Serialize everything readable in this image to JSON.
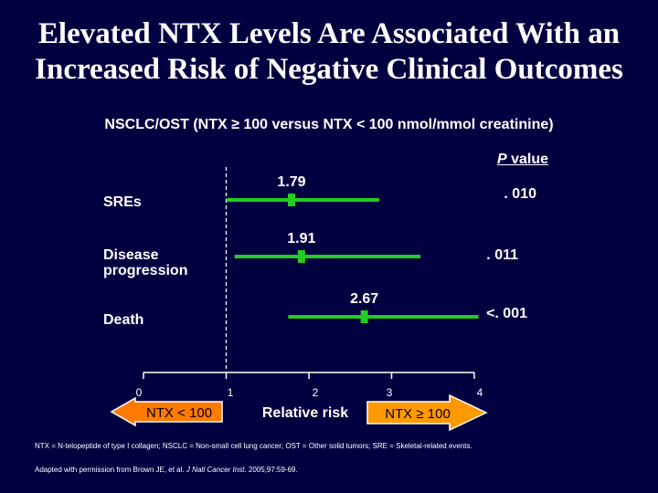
{
  "title_line1": "Elevated NTX Levels Are Associated With an",
  "title_line2": "Increased Risk of Negative Clinical Outcomes",
  "subtitle": "NSCLC/OST (NTX ≥ 100 versus NTX < 100 nmol/mmol creatinine)",
  "pvalue_header_italic": "P",
  "pvalue_header_rest": " value",
  "footnote1": "NTX = N-telopeptide of type I collagen; NSCLC = Non-small cell lung cancer; OST = Other solid tumors; SRE = Skeletal-related events.",
  "footnote2_pre": "Adapted with permission from Brown JE, et al. ",
  "footnote2_journal": "J Natl Cancer Inst.",
  "footnote2_post": " 2005;97:59-69.",
  "colors": {
    "background": "#000040",
    "ci_line": "#22cc22",
    "arrow_fill": "#ff9900",
    "arrow_left_fill": "#ff7a00"
  },
  "chart_data": {
    "type": "forest",
    "xlabel": "Relative risk",
    "xlim": [
      0,
      4
    ],
    "x_ticks": [
      "0",
      "1",
      "2",
      "3",
      "4"
    ],
    "reference_line": 1,
    "left_arrow_label": "NTX < 100",
    "right_arrow_label": "NTX ≥ 100",
    "rows": [
      {
        "label": "SREs",
        "estimate": 1.79,
        "estimate_label": "1.79",
        "ci_low": 1.0,
        "ci_high": 2.85,
        "p_value": ". 010"
      },
      {
        "label": "Disease\nprogression",
        "estimate": 1.91,
        "estimate_label": "1.91",
        "ci_low": 1.1,
        "ci_high": 3.35,
        "p_value": ". 011"
      },
      {
        "label": "Death",
        "estimate": 2.67,
        "estimate_label": "2.67",
        "ci_low": 1.75,
        "ci_high": 4.05,
        "p_value": "<. 001"
      }
    ]
  }
}
